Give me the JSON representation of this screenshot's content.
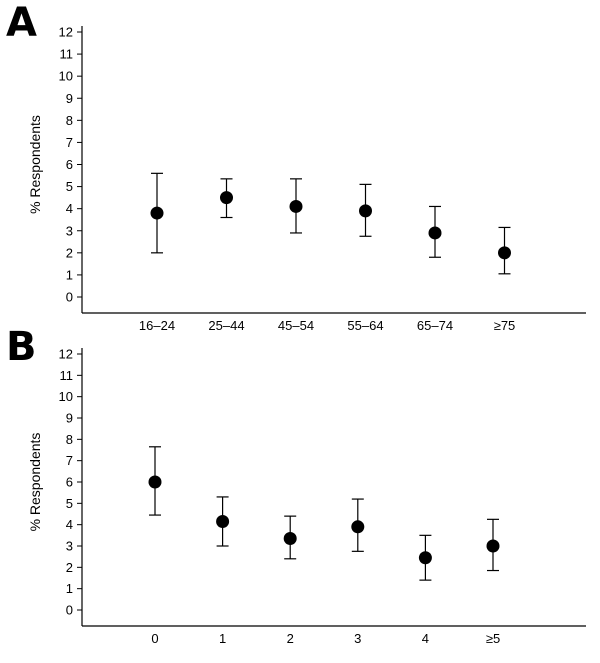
{
  "chart_data": [
    {
      "type": "scatter",
      "panel_label": "A",
      "ylabel": "% Respondents",
      "ylim": [
        0,
        12
      ],
      "yticks": [
        "0",
        "1",
        "2",
        "3",
        "4",
        "5",
        "6",
        "7",
        "8",
        "9",
        "10",
        "11",
        "12"
      ],
      "categories": [
        "16–24",
        "25–44",
        "45–54",
        "55–64",
        "65–74",
        "≥75"
      ],
      "values": [
        3.8,
        4.5,
        4.1,
        3.9,
        2.9,
        2.0
      ],
      "ci_lower": [
        2.0,
        3.6,
        2.9,
        2.75,
        1.8,
        1.05
      ],
      "ci_upper": [
        5.6,
        5.35,
        5.35,
        5.1,
        4.1,
        3.15
      ],
      "grid": false,
      "error_bars": true
    },
    {
      "type": "scatter",
      "panel_label": "B",
      "ylabel": "% Respondents",
      "ylim": [
        0,
        12
      ],
      "yticks": [
        "0",
        "1",
        "2",
        "3",
        "4",
        "5",
        "6",
        "7",
        "8",
        "9",
        "10",
        "11",
        "12"
      ],
      "categories": [
        "0",
        "1",
        "2",
        "3",
        "4",
        "≥5"
      ],
      "values": [
        6.0,
        4.15,
        3.35,
        3.9,
        2.45,
        3.0
      ],
      "ci_lower": [
        4.45,
        3.0,
        2.4,
        2.75,
        1.4,
        1.85
      ],
      "ci_upper": [
        7.65,
        5.3,
        4.4,
        5.2,
        3.5,
        4.25
      ],
      "grid": false,
      "error_bars": true
    }
  ]
}
